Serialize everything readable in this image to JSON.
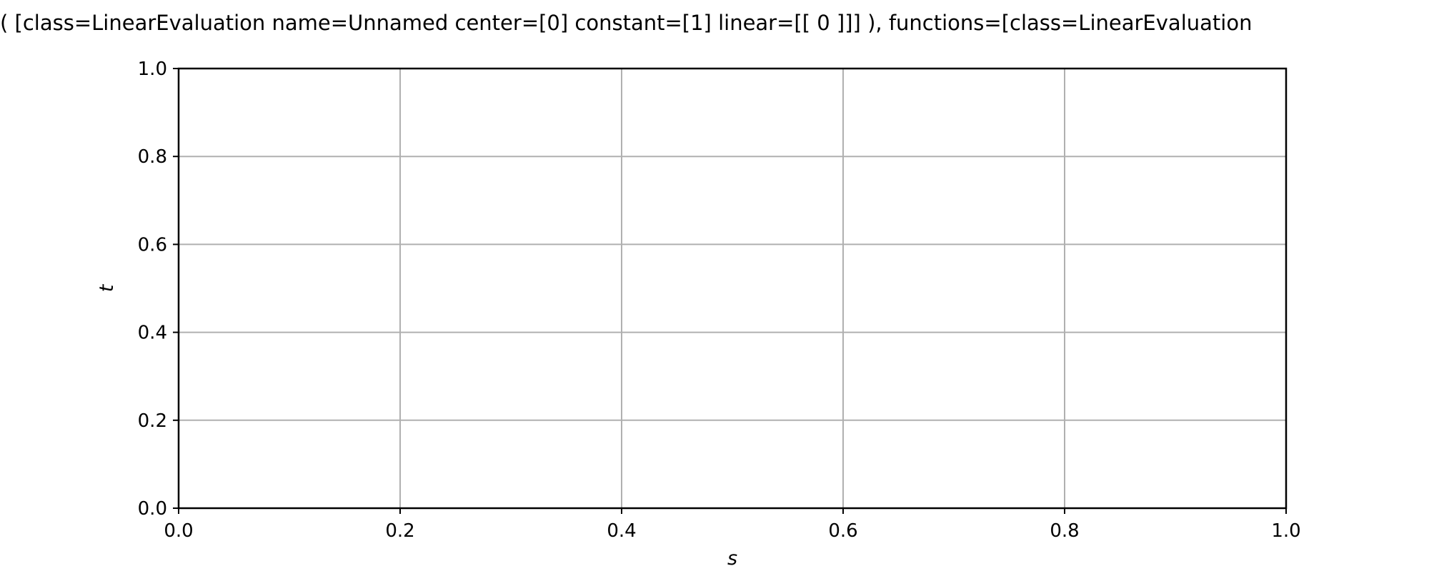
{
  "chart_data": {
    "type": "line",
    "title": "( [class=LinearEvaluation name=Unnamed center=[0] constant=[1] linear=[[ 0 ]]] ), functions=[class=LinearEvaluation",
    "xlabel": "s",
    "ylabel": "t",
    "xlim": [
      0.0,
      1.0
    ],
    "ylim": [
      0.0,
      1.0
    ],
    "x_ticks": [
      "0.0",
      "0.2",
      "0.4",
      "0.6",
      "0.8",
      "1.0"
    ],
    "y_ticks": [
      "0.0",
      "0.2",
      "0.4",
      "0.6",
      "0.8",
      "1.0"
    ],
    "grid": true,
    "series": []
  },
  "colors": {
    "grid": "#b0b0b0",
    "axes": "#000000",
    "background": "#ffffff"
  }
}
